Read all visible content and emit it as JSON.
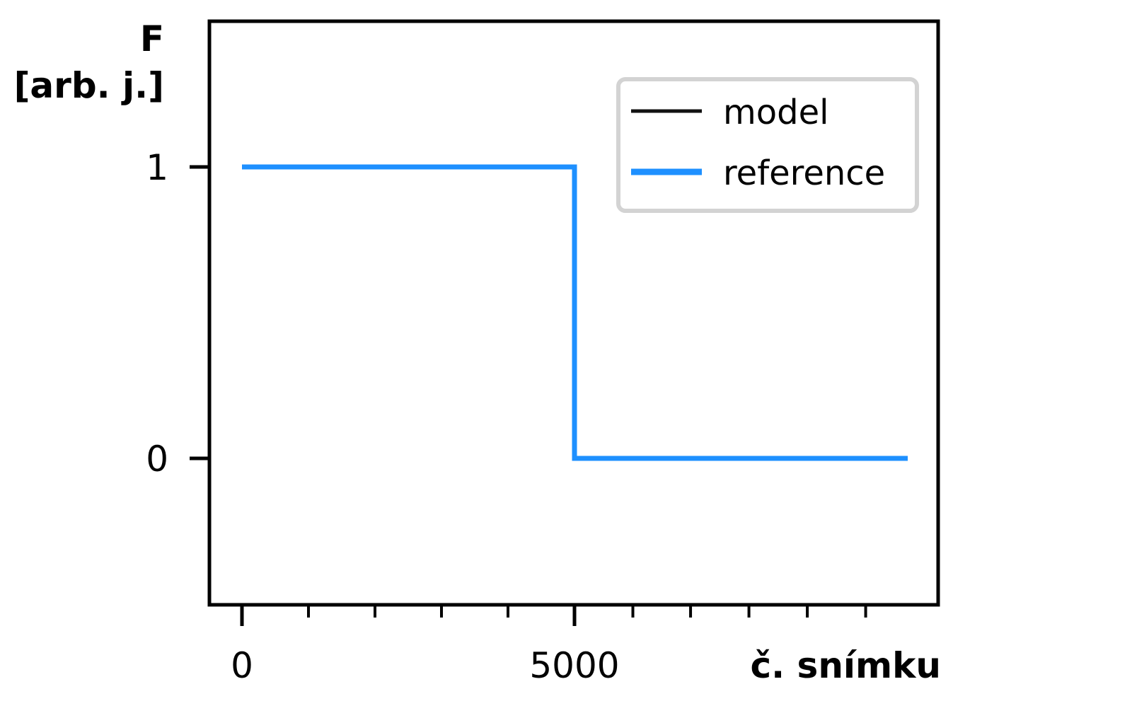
{
  "chart_data": {
    "type": "line",
    "xlabel": "č. snímku",
    "ylabel_line1": "F",
    "ylabel_line2": "[arb. j.]",
    "xlim": [
      -250,
      5250
    ],
    "ylim": [
      -0.5,
      1.5
    ],
    "x_major_ticks": [
      0,
      5000
    ],
    "x_major_tick_labels": [
      "0",
      "5000"
    ],
    "x_minor_ticks": [
      1000,
      2000,
      3000,
      4000,
      5880,
      6750,
      7630,
      8510,
      9390
    ],
    "y_ticks": [
      0,
      1
    ],
    "y_tick_labels": [
      "0",
      "1"
    ],
    "legend_position": "top-right",
    "colors": {
      "model": "#111111",
      "reference": "#1e90ff"
    },
    "series": [
      {
        "name": "model",
        "x": [],
        "y": []
      },
      {
        "name": "reference",
        "x": [
          0,
          5000,
          5000,
          10000
        ],
        "y": [
          1,
          1,
          0,
          0
        ]
      }
    ]
  }
}
